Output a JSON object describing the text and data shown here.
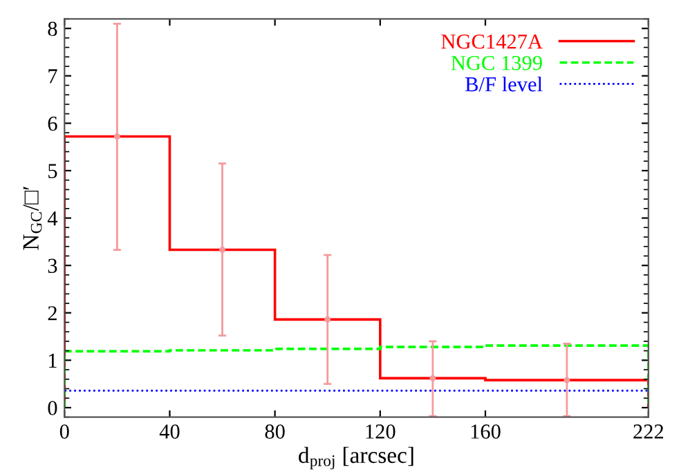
{
  "chart_data": {
    "type": "histogram",
    "xlabel": "d$_{proj}$ [arcsec]",
    "ylabel": "N$_{GC}$/□′",
    "bins": [
      0,
      40,
      80,
      120,
      160,
      222
    ],
    "series": [
      {
        "name": "NGC1427A",
        "color": "#ff0000",
        "line_style": "solid",
        "values": [
          5.72,
          3.33,
          1.86,
          0.62,
          0.58
        ]
      },
      {
        "type": "scatter",
        "marker": "circle",
        "color": "#f49a9a",
        "x": [
          20,
          60,
          100,
          140,
          191
        ],
        "values": [
          5.72,
          3.33,
          1.86,
          0.62,
          0.58
        ],
        "errors": [
          [
            3.33,
            8.1
          ],
          [
            1.52,
            5.15
          ],
          [
            0.5,
            3.22
          ],
          [
            -0.18,
            1.4
          ],
          [
            -0.18,
            1.35
          ]
        ]
      },
      {
        "name": "NGC 1399",
        "color": "#00ff00",
        "line_style": "dashed",
        "values": [
          1.19,
          1.21,
          1.24,
          1.28,
          1.31
        ]
      }
    ],
    "ref_lines": [
      {
        "axis": "y",
        "value": 0.36,
        "label": "B/F level",
        "color": "#0000ff",
        "line_style": "dotted"
      }
    ],
    "xlim": [
      0,
      222
    ],
    "xticks": [
      0,
      40,
      80,
      120,
      160,
      222
    ],
    "ylim": [
      -0.2,
      8.2
    ],
    "yticks": [
      0,
      1,
      2,
      3,
      4,
      5,
      6,
      7,
      8
    ],
    "grid": false,
    "legend": "top right"
  }
}
